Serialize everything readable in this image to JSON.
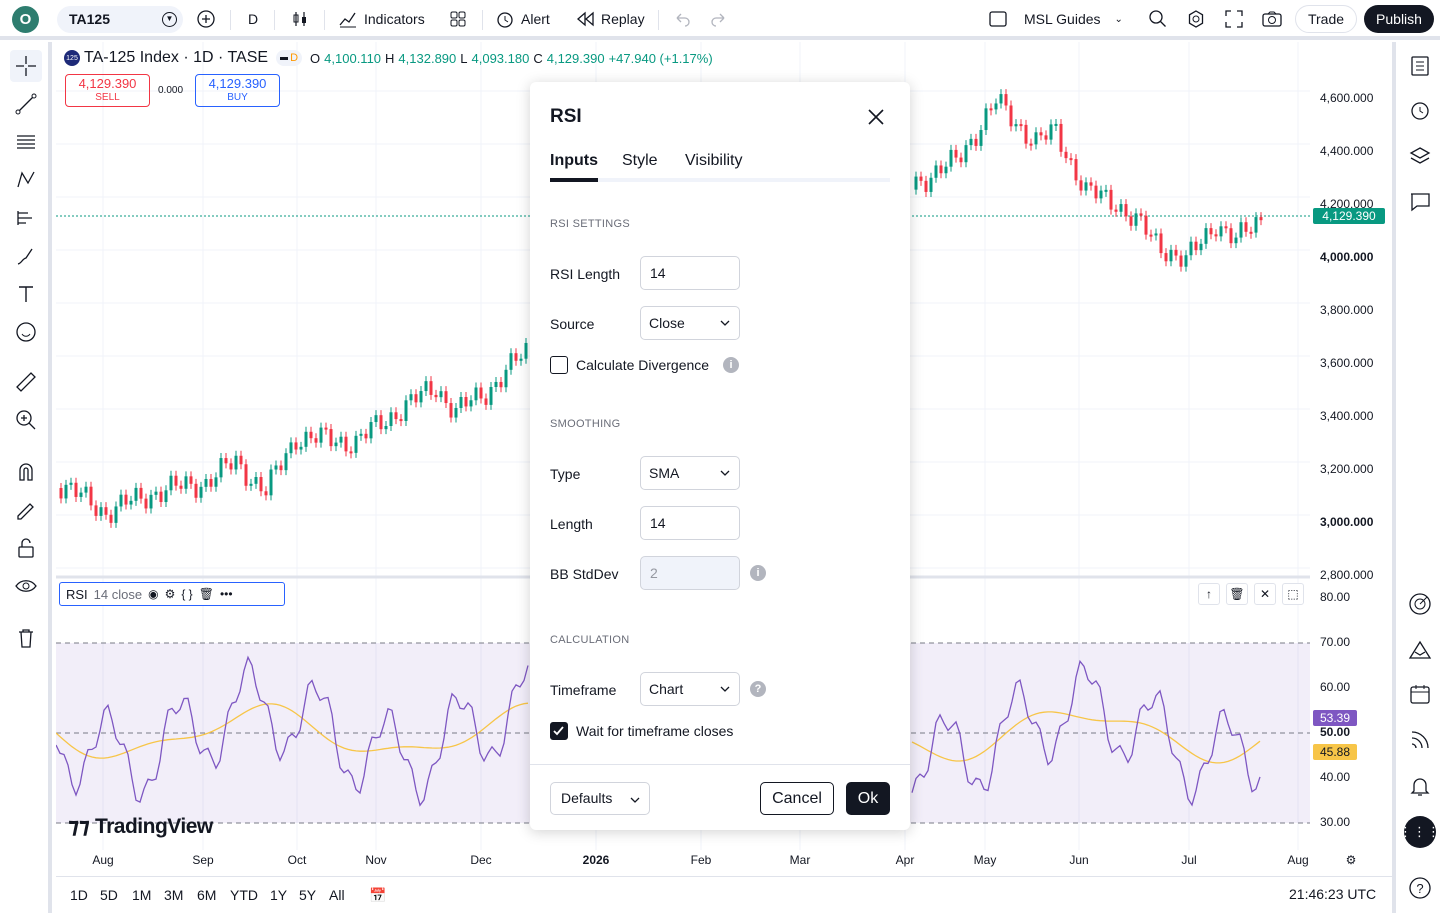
{
  "topbar": {
    "logo": "O",
    "symbol": "TA125",
    "interval": "D",
    "indicators": "Indicators",
    "alert": "Alert",
    "replay": "Replay",
    "layout": "MSL Guides",
    "trade": "Trade",
    "publish": "Publish"
  },
  "legend": {
    "badge": "125",
    "title": "TA-125 Index · 1D · TASE",
    "o_label": "O",
    "o_val": "4,100.110",
    "h_label": "H",
    "h_val": "4,132.890",
    "l_label": "L",
    "l_val": "4,093.180",
    "c_label": "C",
    "c_val": "4,129.390",
    "change": "+47.940 (+1.17%)"
  },
  "trade_widget": {
    "sell_price": "4,129.390",
    "sell_label": "SELL",
    "spread": "0.000",
    "buy_price": "4,129.390",
    "buy_label": "BUY"
  },
  "price_axis": {
    "labels": [
      "4,600.000",
      "4,400.000",
      "4,200.000",
      "4,000.000",
      "3,800.000",
      "3,600.000",
      "3,400.000",
      "3,200.000",
      "3,000.000",
      "2,800.000"
    ],
    "current": "4,129.390"
  },
  "rsi_axis": {
    "labels": [
      "80.00",
      "70.00",
      "60.00",
      "50.00",
      "40.00",
      "30.00"
    ],
    "rsi_value": "53.39",
    "ma_value": "45.88"
  },
  "rsi_legend": {
    "name": "RSI",
    "params": "14 close"
  },
  "time_axis": [
    "Aug",
    "Sep",
    "Oct",
    "Nov",
    "Dec",
    "2026",
    "Feb",
    "Mar",
    "Apr",
    "May",
    "Jun",
    "Jul",
    "Aug"
  ],
  "bottombar": {
    "ranges": [
      "1D",
      "5D",
      "1M",
      "3M",
      "6M",
      "YTD",
      "1Y",
      "5Y",
      "All"
    ],
    "clock": "21:46:23 UTC"
  },
  "watermark": "TradingView",
  "dialog": {
    "title": "RSI",
    "tabs": [
      "Inputs",
      "Style",
      "Visibility"
    ],
    "rsi_settings": "RSI SETTINGS",
    "rsi_length_label": "RSI Length",
    "rsi_length": "14",
    "source_label": "Source",
    "source": "Close",
    "divergence_label": "Calculate Divergence",
    "smoothing": "SMOOTHING",
    "type_label": "Type",
    "type": "SMA",
    "length_label": "Length",
    "length": "14",
    "bb_label": "BB StdDev",
    "bb": "2",
    "calculation": "CALCULATION",
    "timeframe_label": "Timeframe",
    "timeframe": "Chart",
    "wait_label": "Wait for timeframe closes",
    "defaults": "Defaults",
    "cancel": "Cancel",
    "ok": "Ok"
  },
  "colors": {
    "up": "#089981",
    "down": "#f23645",
    "rsi": "#7e57c2",
    "rsi_ma": "#f7c548",
    "accent": "#2962ff"
  }
}
